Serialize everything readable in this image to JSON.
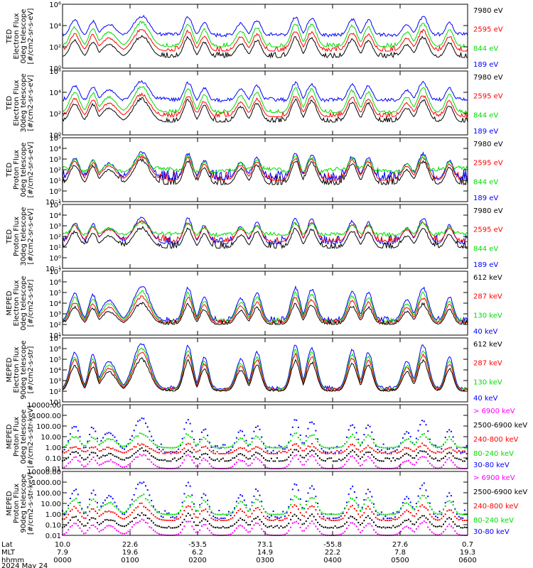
{
  "chart_data": [
    {
      "type": "line",
      "ylabel_lines": [
        "TED",
        "Electron Flux",
        "0deg telescope",
        "[#/cm2-sr-s-eV]"
      ],
      "yscale": "log",
      "ylim_exp": [
        0,
        6
      ],
      "tick_labels": [
        "10⁰",
        "10²",
        "10⁴",
        "10⁶"
      ],
      "legend": [
        {
          "label": "7980 eV",
          "color": "#000000"
        },
        {
          "label": "2595 eV",
          "color": "#ff0000"
        },
        {
          "label": "844 eV",
          "color": "#00dd00"
        },
        {
          "label": "189 eV",
          "color": "#0000ff"
        }
      ],
      "series": [
        {
          "color": "#000000",
          "base": 1.0,
          "noise": 0.5,
          "peak": 3.0,
          "vis": 0.0
        },
        {
          "color": "#ff0000",
          "base": 1.6,
          "noise": 0.5,
          "peak": 3.6,
          "vis": 0.0
        },
        {
          "color": "#00dd00",
          "base": 2.0,
          "noise": 0.4,
          "peak": 4.3,
          "vis": 1.3
        },
        {
          "color": "#0000ff",
          "base": 2.9,
          "noise": 0.3,
          "peak": 4.9,
          "vis": 3.2
        }
      ]
    },
    {
      "type": "line",
      "ylabel_lines": [
        "TED",
        "Electron Flux",
        "30deg telescope",
        "[#/cm2-sr-s-eV]"
      ],
      "yscale": "log",
      "ylim_exp": [
        0,
        6
      ],
      "tick_labels": [
        "10⁰",
        "10²",
        "10⁴",
        "10⁶"
      ],
      "legend": [
        {
          "label": "7980 eV",
          "color": "#000000"
        },
        {
          "label": "2595 eV",
          "color": "#ff0000"
        },
        {
          "label": "844 eV",
          "color": "#00dd00"
        },
        {
          "label": "189 eV",
          "color": "#0000ff"
        }
      ],
      "series": [
        {
          "color": "#000000",
          "base": 1.2,
          "noise": 0.5,
          "peak": 3.4,
          "vis": 0.0
        },
        {
          "color": "#ff0000",
          "base": 1.7,
          "noise": 0.5,
          "peak": 3.8,
          "vis": 0.0
        },
        {
          "color": "#00dd00",
          "base": 2.1,
          "noise": 0.3,
          "peak": 4.5,
          "vis": 1.5
        },
        {
          "color": "#0000ff",
          "base": 3.0,
          "noise": 0.2,
          "peak": 5.0,
          "vis": 3.4
        }
      ]
    },
    {
      "type": "line",
      "ylabel_lines": [
        "TED",
        "Proton Flux",
        "0deg telescope",
        "[#/cm2-sr-s-eV]"
      ],
      "yscale": "log",
      "ylim_exp": [
        -1,
        5
      ],
      "tick_labels": [
        "10⁻¹",
        "10⁰",
        "10¹",
        "10²",
        "10³",
        "10⁴",
        "10⁵"
      ],
      "legend": [
        {
          "label": "7980 eV",
          "color": "#000000"
        },
        {
          "label": "2595 eV",
          "color": "#ff0000"
        },
        {
          "label": "844 eV",
          "color": "#00dd00"
        },
        {
          "label": "189 eV",
          "color": "#0000ff"
        }
      ],
      "series": [
        {
          "color": "#000000",
          "base": 0.6,
          "noise": 0.9,
          "peak": 2.9,
          "vis": 0.0
        },
        {
          "color": "#ff0000",
          "base": 1.0,
          "noise": 0.8,
          "peak": 3.2,
          "vis": 0.0
        },
        {
          "color": "#0000ff",
          "base": 1.1,
          "noise": 0.9,
          "peak": 3.6,
          "vis": 0.0
        },
        {
          "color": "#00dd00",
          "base": 1.2,
          "noise": 0.6,
          "peak": 3.4,
          "vis": 2.2
        }
      ]
    },
    {
      "type": "line",
      "ylabel_lines": [
        "TED",
        "Proton Flux",
        "30deg telescope",
        "[#/cm2-sr-s-eV]"
      ],
      "yscale": "log",
      "ylim_exp": [
        -1,
        5
      ],
      "tick_labels": [
        "10⁻¹",
        "10⁰",
        "10¹",
        "10²",
        "10³",
        "10⁴",
        "10⁵"
      ],
      "legend": [
        {
          "label": "7980 eV",
          "color": "#000000"
        },
        {
          "label": "2595 eV",
          "color": "#ff0000"
        },
        {
          "label": "844 eV",
          "color": "#00dd00"
        },
        {
          "label": "189 eV",
          "color": "#0000ff"
        }
      ],
      "series": [
        {
          "color": "#000000",
          "base": 0.9,
          "noise": 0.7,
          "peak": 2.8,
          "vis": 0.0
        },
        {
          "color": "#0000ff",
          "base": 1.3,
          "noise": 0.8,
          "peak": 3.8,
          "vis": 0.0
        },
        {
          "color": "#ff0000",
          "base": 1.5,
          "noise": 0.6,
          "peak": 3.4,
          "vis": 0.0
        },
        {
          "color": "#00dd00",
          "base": 1.9,
          "noise": 0.4,
          "peak": 3.3,
          "vis": 2.3
        }
      ]
    },
    {
      "type": "line",
      "ylabel_lines": [
        "MEPED",
        "Electron Flux",
        "0deg telescope",
        "[#/cm2-s-str]"
      ],
      "yscale": "log",
      "ylim_exp": [
        1,
        7
      ],
      "tick_labels": [
        "10¹",
        "10²",
        "10³",
        "10⁴",
        "10⁵",
        "10⁶",
        "10⁷"
      ],
      "legend": [
        {
          "label": "612 keV",
          "color": "#000000"
        },
        {
          "label": "287 keV",
          "color": "#ff0000"
        },
        {
          "label": "130 keV",
          "color": "#00dd00"
        },
        {
          "label": "40 keV",
          "color": "#0000ff"
        }
      ],
      "series": [
        {
          "color": "#0000ff",
          "base": 2.3,
          "noise": 0.5,
          "peak": 5.6,
          "vis": 0.0
        },
        {
          "color": "#00dd00",
          "base": 2.2,
          "noise": 0.4,
          "peak": 5.1,
          "vis": 0.0
        },
        {
          "color": "#ff0000",
          "base": 2.1,
          "noise": 0.4,
          "peak": 4.6,
          "vis": 0.0
        },
        {
          "color": "#000000",
          "base": 2.0,
          "noise": 0.4,
          "peak": 4.0,
          "vis": 0.0
        }
      ]
    },
    {
      "type": "line",
      "ylabel_lines": [
        "MEPED",
        "Electron Flux",
        "90deg telescope",
        "[#/cm2-s-str]"
      ],
      "yscale": "log",
      "ylim_exp": [
        1,
        7
      ],
      "tick_labels": [
        "10¹",
        "10²",
        "10³",
        "10⁴",
        "10⁵",
        "10⁶",
        "10⁷"
      ],
      "legend": [
        {
          "label": "612 keV",
          "color": "#000000"
        },
        {
          "label": "287 keV",
          "color": "#ff0000"
        },
        {
          "label": "130 keV",
          "color": "#00dd00"
        },
        {
          "label": "40 keV",
          "color": "#0000ff"
        }
      ],
      "series": [
        {
          "color": "#0000ff",
          "base": 2.2,
          "noise": 0.3,
          "peak": 6.5,
          "vis": 0.0
        },
        {
          "color": "#00dd00",
          "base": 2.1,
          "noise": 0.3,
          "peak": 6.0,
          "vis": 0.0
        },
        {
          "color": "#ff0000",
          "base": 2.05,
          "noise": 0.3,
          "peak": 5.6,
          "vis": 0.0
        },
        {
          "color": "#000000",
          "base": 2.0,
          "noise": 0.2,
          "peak": 5.0,
          "vis": 0.0
        }
      ]
    },
    {
      "type": "scatter",
      "ylabel_lines": [
        "MEPED",
        "Proton Flux",
        "0deg telescope",
        "[#/cm2-s-str-keV]"
      ],
      "yscale": "log",
      "ylim_exp": [
        -2,
        4
      ],
      "tick_labels": [
        "0.01",
        "0.10",
        "1.00",
        "10.00",
        "100.00",
        "1000.00",
        "10000.00"
      ],
      "legend": [
        {
          "label": "> 6900 keV",
          "color": "#ff00ff"
        },
        {
          "label": "2500-6900 keV",
          "color": "#000000"
        },
        {
          "label": "240-800 keV",
          "color": "#ff0000"
        },
        {
          "label": "80-240 keV",
          "color": "#00dd00"
        },
        {
          "label": "30-80 keV",
          "color": "#0000ff"
        }
      ],
      "series": [
        {
          "color": "#0000ff",
          "base": -0.5,
          "noise": 0.8,
          "peak": 2.7,
          "vis": 0.0
        },
        {
          "color": "#00dd00",
          "base": -0.05,
          "noise": 0.05,
          "peak": 1.3,
          "vis": 0.0
        },
        {
          "color": "#ff0000",
          "base": -0.6,
          "noise": 0.3,
          "peak": 0.3,
          "vis": 0.0
        },
        {
          "color": "#000000",
          "base": -1.3,
          "noise": 0.3,
          "peak": -0.2,
          "vis": 0.0
        },
        {
          "color": "#ff00ff",
          "base": -2.0,
          "noise": 0.0,
          "peak": -0.7,
          "vis": 0.0
        }
      ]
    },
    {
      "type": "scatter",
      "ylabel_lines": [
        "MEPED",
        "Proton Flux",
        "90deg telescope",
        "[#/cm2-s-str-keV]"
      ],
      "yscale": "log",
      "ylim_exp": [
        -2,
        4
      ],
      "tick_labels": [
        "0.01",
        "0.10",
        "1.00",
        "10.00",
        "100.00",
        "1000.00",
        "10000.00"
      ],
      "legend": [
        {
          "label": "> 6900 keV",
          "color": "#ff00ff"
        },
        {
          "label": "2500-6900 keV",
          "color": "#000000"
        },
        {
          "label": "240-800 keV",
          "color": "#ff0000"
        },
        {
          "label": "80-240 keV",
          "color": "#00dd00"
        },
        {
          "label": "30-80 keV",
          "color": "#0000ff"
        }
      ],
      "series": [
        {
          "color": "#0000ff",
          "base": -0.4,
          "noise": 0.8,
          "peak": 3.0,
          "vis": 0.0
        },
        {
          "color": "#00dd00",
          "base": -0.05,
          "noise": 0.05,
          "peak": 1.8,
          "vis": 0.0
        },
        {
          "color": "#ff0000",
          "base": -0.6,
          "noise": 0.2,
          "peak": 0.9,
          "vis": 0.0
        },
        {
          "color": "#000000",
          "base": -1.3,
          "noise": 0.2,
          "peak": 0.0,
          "vis": 0.0
        },
        {
          "color": "#ff00ff",
          "base": -2.0,
          "noise": 0.0,
          "peak": -0.6,
          "vis": 0.0
        }
      ]
    }
  ],
  "xaxis": {
    "row_labels": [
      "Lat",
      "MLT",
      "hhmm",
      "2024 May 24"
    ],
    "ticks": [
      {
        "lat": "10.0",
        "mlt": "7.9",
        "hhmm": "0000"
      },
      {
        "lat": "22.6",
        "mlt": "19.6",
        "hhmm": "0100"
      },
      {
        "lat": "-53.5",
        "mlt": "6.2",
        "hhmm": "0200"
      },
      {
        "lat": "73.1",
        "mlt": "14.9",
        "hhmm": "0300"
      },
      {
        "lat": "-55.8",
        "mlt": "22.2",
        "hhmm": "0400"
      },
      {
        "lat": "27.6",
        "mlt": "7.8",
        "hhmm": "0500"
      },
      {
        "lat": "0.7",
        "mlt": "19.3",
        "hhmm": "0600"
      }
    ]
  },
  "passes": [
    {
      "c": 0.03,
      "w": 0.012,
      "a": 0.8
    },
    {
      "c": 0.075,
      "w": 0.01,
      "a": 0.75
    },
    {
      "c": 0.115,
      "w": 0.018,
      "a": 0.6
    },
    {
      "c": 0.195,
      "w": 0.02,
      "a": 1.0
    },
    {
      "c": 0.31,
      "w": 0.011,
      "a": 0.95
    },
    {
      "c": 0.35,
      "w": 0.01,
      "a": 0.7
    },
    {
      "c": 0.44,
      "w": 0.012,
      "a": 0.65
    },
    {
      "c": 0.48,
      "w": 0.011,
      "a": 0.8
    },
    {
      "c": 0.575,
      "w": 0.011,
      "a": 0.95
    },
    {
      "c": 0.615,
      "w": 0.012,
      "a": 0.9
    },
    {
      "c": 0.715,
      "w": 0.012,
      "a": 0.85
    },
    {
      "c": 0.755,
      "w": 0.011,
      "a": 0.8
    },
    {
      "c": 0.85,
      "w": 0.012,
      "a": 0.6
    },
    {
      "c": 0.89,
      "w": 0.013,
      "a": 0.95
    },
    {
      "c": 0.955,
      "w": 0.01,
      "a": 0.7
    }
  ]
}
